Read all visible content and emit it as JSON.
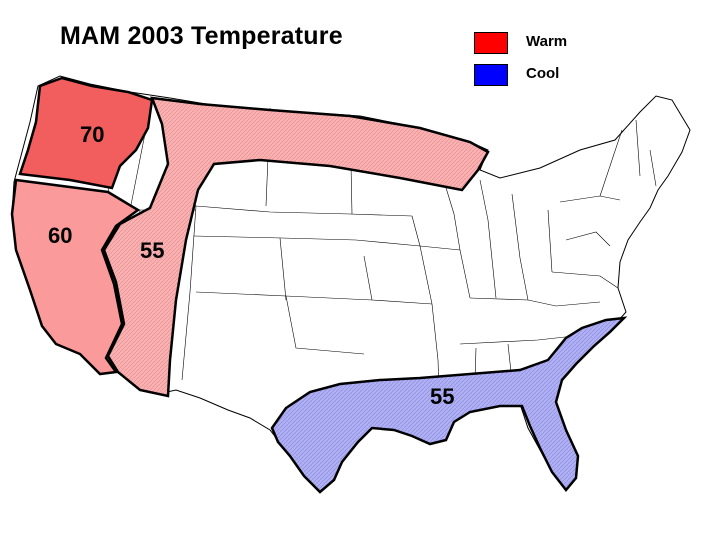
{
  "title": "MAM 2003 Temperature",
  "legend": [
    {
      "label": "Warm",
      "color": "#ff0000"
    },
    {
      "label": "Cool",
      "color": "#0000ff"
    }
  ],
  "regions": [
    {
      "label": "70",
      "category": "Warm"
    },
    {
      "label": "60",
      "category": "Warm"
    },
    {
      "label": "55",
      "category": "Warm"
    },
    {
      "label": "55",
      "category": "Cool"
    }
  ],
  "colors": {
    "warm_70": "#f25d5d",
    "warm_60": "#fb9a9a",
    "warm_55": "#f7b3b3",
    "cool_55": "#aaaaf0",
    "outline": "#000000",
    "state_lines": "#000000"
  }
}
